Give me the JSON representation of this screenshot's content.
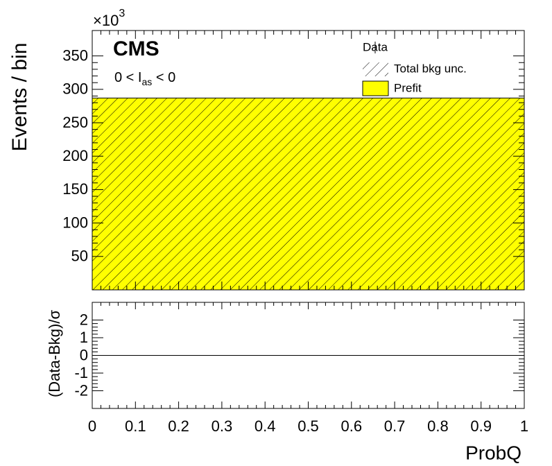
{
  "chart_data": [
    {
      "type": "histogram",
      "experiment": "CMS",
      "annotation": [
        "0 < I",
        "as",
        " < 0"
      ],
      "ylabel": "Events / bin",
      "multiplier": [
        "×10",
        "3"
      ],
      "bins": [
        0,
        1
      ],
      "values": [
        287
      ],
      "color": "#ffff00",
      "hatch": true,
      "xlim": [
        0,
        1
      ],
      "ylim": [
        0,
        388
      ],
      "yticks": [
        50,
        100,
        150,
        200,
        250,
        300,
        350
      ],
      "legend": [
        "Data",
        "Total bkg unc.",
        "Prefit"
      ],
      "legend_position": "top-right"
    },
    {
      "type": "histogram",
      "ylabel": "(Data-Bkg)/σ",
      "xlabel": "ProbQ",
      "bins": [
        0,
        1
      ],
      "values": [
        0
      ],
      "color": "#000000",
      "xlim": [
        0,
        1
      ],
      "xticks": [
        0,
        0.1,
        0.2,
        0.3,
        0.4,
        0.5,
        0.6,
        0.7,
        0.8,
        0.9,
        1
      ],
      "ylim": [
        -3,
        3
      ],
      "yticks": [
        -2,
        -1,
        0,
        1,
        2
      ]
    }
  ]
}
